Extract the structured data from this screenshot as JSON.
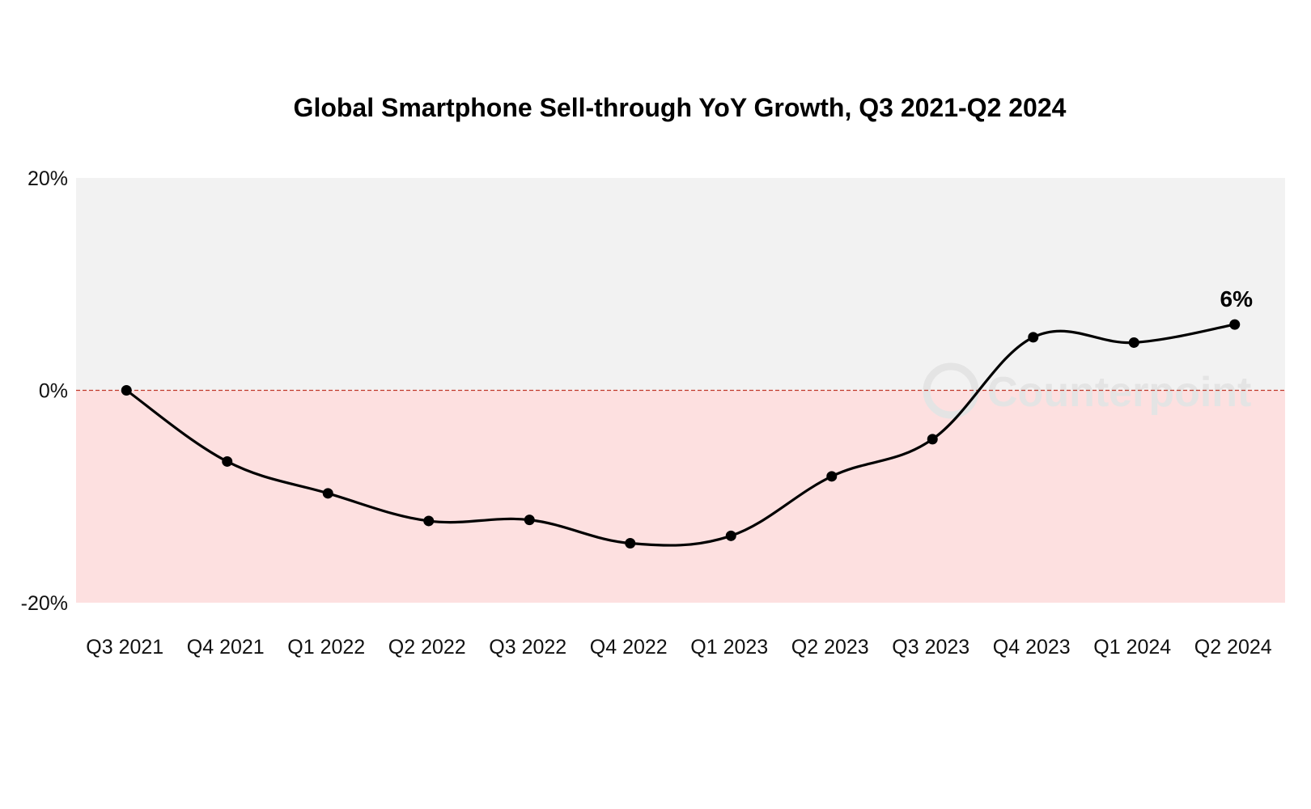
{
  "chart_data": {
    "type": "line",
    "title": "Global Smartphone Sell-through YoY Growth, Q3 2021-Q2 2024",
    "xlabel": "",
    "ylabel": "",
    "categories": [
      "Q3 2021",
      "Q4 2021",
      "Q1 2022",
      "Q2 2022",
      "Q3 2022",
      "Q4 2022",
      "Q1 2023",
      "Q2 2023",
      "Q3 2023",
      "Q4 2023",
      "Q1 2024",
      "Q2 2024"
    ],
    "series": [
      {
        "values": [
          0,
          -6.7,
          -9.7,
          -12.3,
          -12.2,
          -14.4,
          -13.7,
          -8.1,
          -4.6,
          5.0,
          4.5,
          6.2
        ]
      }
    ],
    "ylim": [
      -20,
      20
    ],
    "yticks": [
      "20%",
      "0%",
      "-20%"
    ],
    "data_labels": [
      {
        "category": "Q2 2024",
        "text": "6%"
      }
    ],
    "grid": false,
    "legend": "none",
    "watermark": "Counterpoint",
    "colors": {
      "line": "#000000",
      "positive_band": "#f2f2f2",
      "negative_band": "#fde0e0",
      "zero_line": "#c0392b",
      "watermark": "#e4e4e4"
    }
  }
}
